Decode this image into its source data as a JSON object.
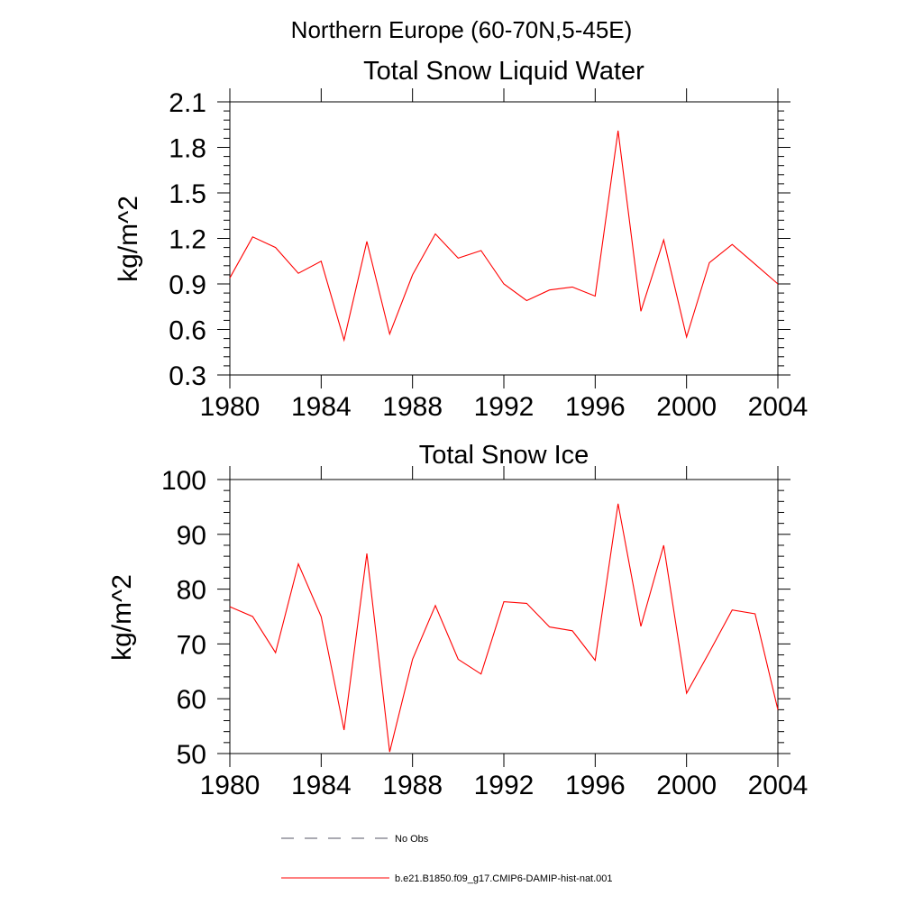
{
  "figure": {
    "title": "Northern Europe (60-70N,5-45E)",
    "legend": [
      {
        "label": "No Obs",
        "style": "dashed",
        "color": "#555566"
      },
      {
        "label": "b.e21.B1850.f09_g17.CMIP6-DAMIP-hist-nat.001",
        "style": "solid",
        "color": "#ff0000"
      }
    ]
  },
  "chart_data": [
    {
      "type": "line",
      "title": "Total Snow Liquid Water",
      "xlabel": "",
      "ylabel": "kg/m^2",
      "xlim": [
        1980,
        2004
      ],
      "ylim": [
        0.3,
        2.1
      ],
      "xticks": [
        1980,
        1984,
        1988,
        1992,
        1996,
        2000,
        2004
      ],
      "yticks": [
        0.3,
        0.6,
        0.9,
        1.2,
        1.5,
        1.8,
        2.1
      ],
      "ytick_labels": [
        "0.3",
        "0.6",
        "0.9",
        "1.2",
        "1.5",
        "1.8",
        "2.1"
      ],
      "grid": false,
      "series": [
        {
          "color": "#ff0000",
          "x": [
            1980,
            1981,
            1982,
            1983,
            1984,
            1985,
            1986,
            1987,
            1988,
            1989,
            1990,
            1991,
            1992,
            1993,
            1994,
            1995,
            1996,
            1997,
            1998,
            1999,
            2000,
            2001,
            2002,
            2003,
            2004
          ],
          "y": [
            0.94,
            1.21,
            1.14,
            0.97,
            1.05,
            0.53,
            1.18,
            0.57,
            0.96,
            1.23,
            1.07,
            1.12,
            0.9,
            0.79,
            0.86,
            0.88,
            0.82,
            1.91,
            0.72,
            1.19,
            0.55,
            1.04,
            1.16,
            1.03,
            0.9
          ]
        }
      ]
    },
    {
      "type": "line",
      "title": "Total Snow Ice",
      "xlabel": "",
      "ylabel": "kg/m^2",
      "xlim": [
        1980,
        2004
      ],
      "ylim": [
        50,
        100
      ],
      "xticks": [
        1980,
        1984,
        1988,
        1992,
        1996,
        2000,
        2004
      ],
      "yticks": [
        50,
        60,
        70,
        80,
        90,
        100
      ],
      "ytick_labels": [
        "50",
        "60",
        "70",
        "80",
        "90",
        "100"
      ],
      "grid": false,
      "series": [
        {
          "color": "#ff0000",
          "x": [
            1980,
            1981,
            1982,
            1983,
            1984,
            1985,
            1986,
            1987,
            1988,
            1989,
            1990,
            1991,
            1992,
            1993,
            1994,
            1995,
            1996,
            1997,
            1998,
            1999,
            2000,
            2001,
            2002,
            2003,
            2004
          ],
          "y": [
            76.8,
            75.0,
            68.4,
            84.6,
            75.0,
            54.3,
            86.5,
            50.3,
            67.2,
            77.0,
            67.2,
            64.5,
            77.7,
            77.4,
            73.1,
            72.4,
            67.0,
            95.6,
            73.2,
            88.0,
            61.0,
            68.5,
            76.2,
            75.5,
            58.0
          ]
        }
      ]
    }
  ]
}
